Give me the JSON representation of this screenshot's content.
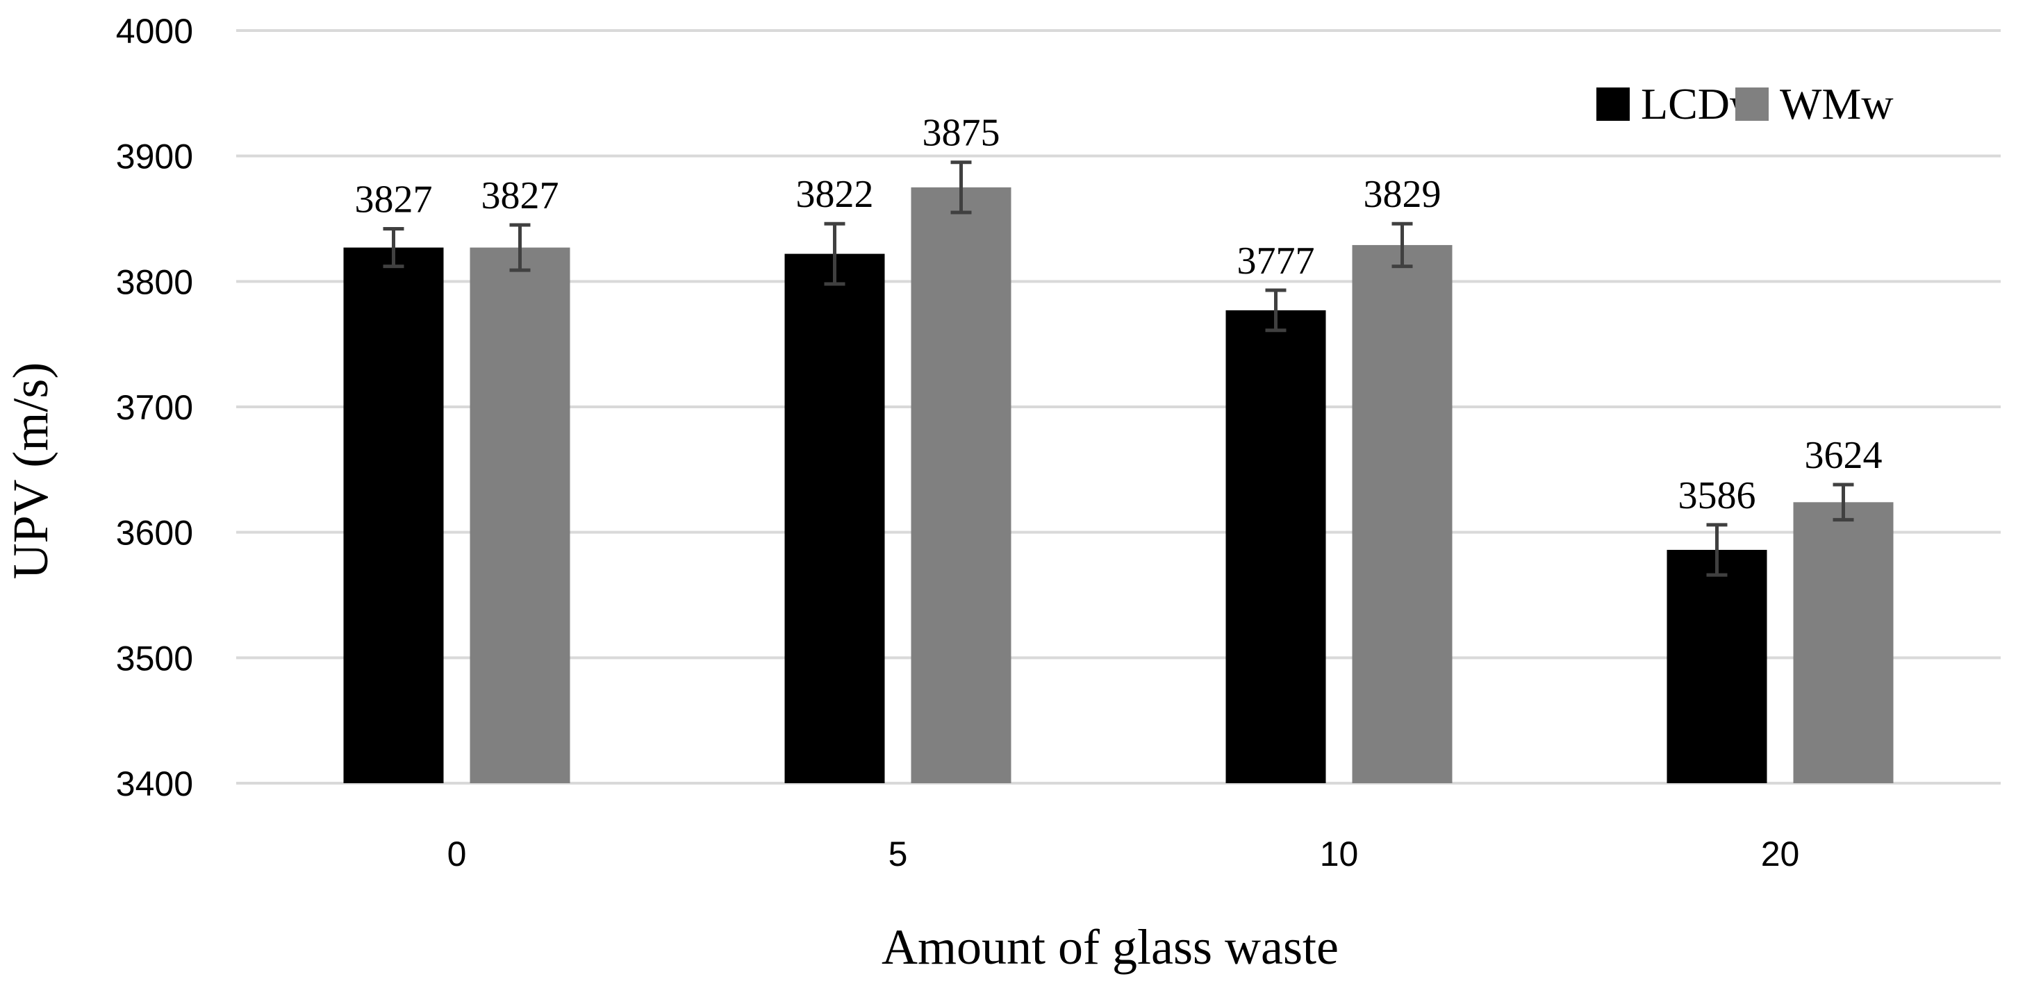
{
  "chart_data": {
    "type": "bar",
    "xlabel": "Amount of glass waste",
    "ylabel": "UPV (m/s)",
    "categories": [
      "0",
      "5",
      "10",
      "20"
    ],
    "ylim": [
      3400,
      4000
    ],
    "yticks": [
      3400,
      3500,
      3600,
      3700,
      3800,
      3900,
      4000
    ],
    "grid": true,
    "legend_position": "top-right",
    "series": [
      {
        "name": "LCDw",
        "color": "#000000",
        "values": [
          3827,
          3822,
          3777,
          3586
        ],
        "errors": [
          15,
          24,
          16,
          20
        ],
        "labels": [
          "3827",
          "3822",
          "3777",
          "3586"
        ]
      },
      {
        "name": "WMw",
        "color": "#808080",
        "values": [
          3827,
          3875,
          3829,
          3624
        ],
        "errors": [
          18,
          20,
          17,
          14
        ],
        "labels": [
          "3827",
          "3875",
          "3829",
          "3624"
        ]
      }
    ]
  }
}
